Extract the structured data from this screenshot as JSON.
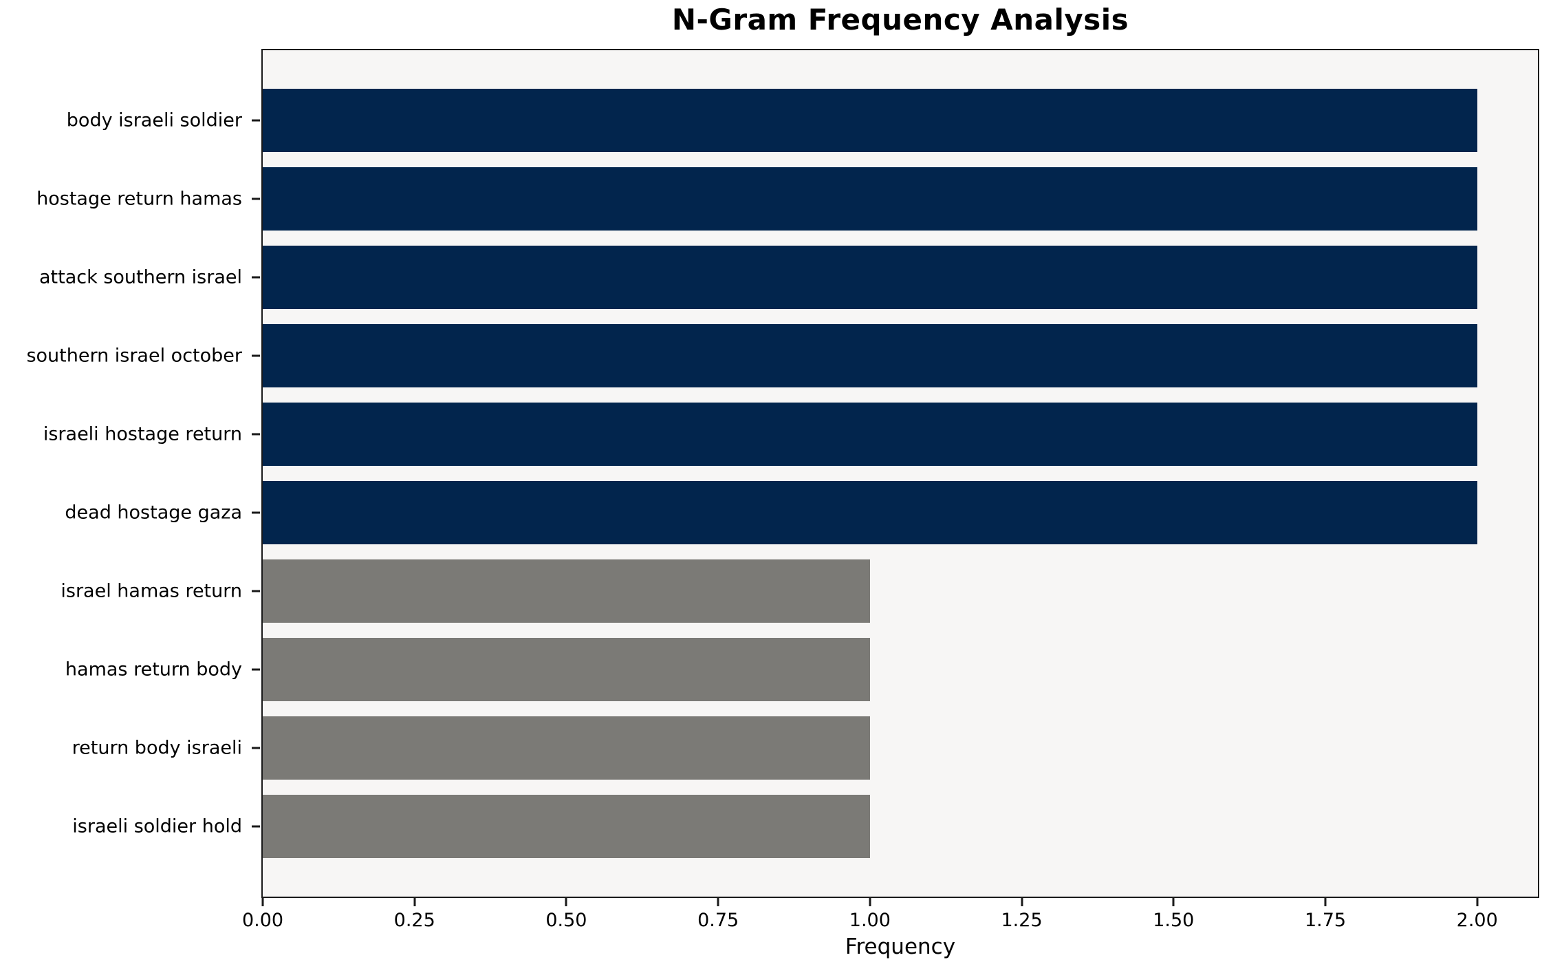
{
  "chart_data": {
    "type": "bar",
    "orientation": "horizontal",
    "title": "N-Gram Frequency Analysis",
    "xlabel": "Frequency",
    "xlim": [
      0,
      2.1
    ],
    "grid": false,
    "plot_bg": "#f7f6f5",
    "figure_bg": "#ffffff",
    "spine_color": "#1a1a1a",
    "categories": [
      "body israeli soldier",
      "hostage return hamas",
      "attack southern israel",
      "southern israel october",
      "israeli hostage return",
      "dead hostage gaza",
      "israel hamas return",
      "hamas return body",
      "return body israeli",
      "israeli soldier hold"
    ],
    "values": [
      2,
      2,
      2,
      2,
      2,
      2,
      1,
      1,
      1,
      1
    ],
    "bar_colors": [
      "#02254d",
      "#02254d",
      "#02254d",
      "#02254d",
      "#02254d",
      "#02254d",
      "#7b7a76",
      "#7b7a76",
      "#7b7a76",
      "#7b7a76"
    ],
    "x_tick_values": [
      0,
      0.25,
      0.5,
      0.75,
      1.0,
      1.25,
      1.5,
      1.75,
      2.0
    ],
    "x_tick_labels": [
      "0.00",
      "0.25",
      "0.50",
      "0.75",
      "1.00",
      "1.25",
      "1.50",
      "1.75",
      "2.00"
    ]
  }
}
